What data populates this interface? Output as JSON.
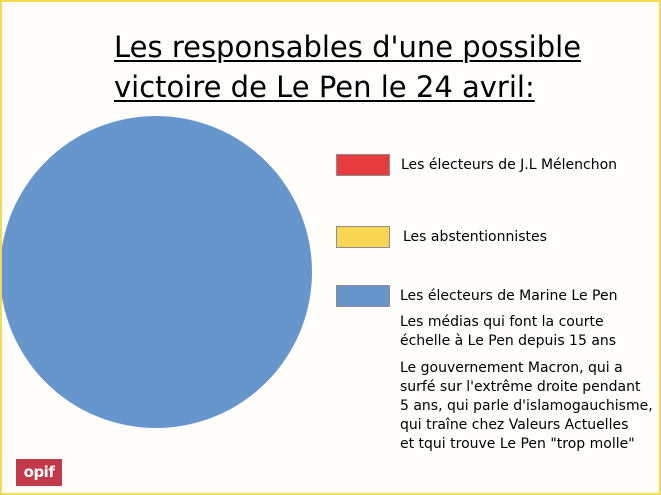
{
  "chart_data": {
    "type": "pie",
    "title": "Les responsables d'une possible victoire de Le Pen le 24 avril:",
    "title_lines": [
      "Les responsables d'une possible",
      "victoire de Le Pen le 24 avril:"
    ],
    "legend_position": "right",
    "series": [
      {
        "name": "Les électeurs de J.L Mélenchon",
        "value": 0,
        "color": "#e63c3f"
      },
      {
        "name": "Les abstentionnistes",
        "value": 0,
        "color": "#f6d652"
      },
      {
        "name": "Les électeurs de Marine Le Pen",
        "value": 100,
        "color": "#6796cd"
      }
    ],
    "notes": [
      {
        "lines": [
          "Les médias qui font la courte",
          "échelle à Le Pen depuis 15 ans"
        ]
      },
      {
        "lines": [
          "Le gouvernement Macron, qui a",
          "surfé sur l'extrême droite pendant",
          "5 ans, qui parle d'islamogauchisme,",
          "qui traîne chez Valeurs Actuelles",
          "et tqui trouve Le Pen \"trop molle\""
        ]
      }
    ]
  },
  "logo": {
    "text": "opif",
    "color": "#c2394b"
  },
  "frame_color": "#f2da5a"
}
